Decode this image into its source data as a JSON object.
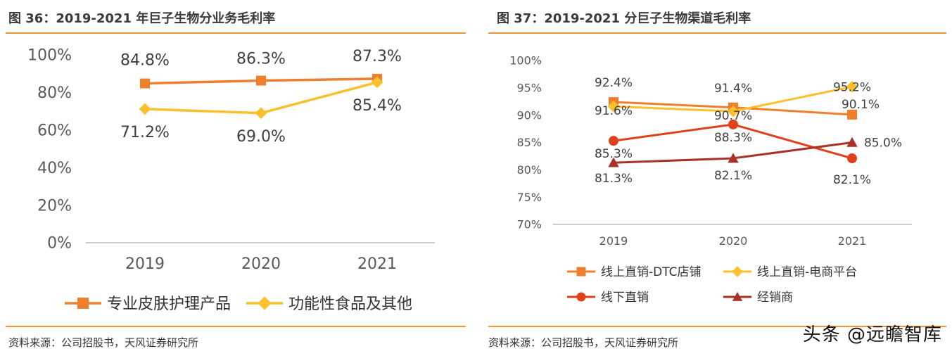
{
  "watermark": "头条 @远瞻智库",
  "chart_data": [
    {
      "type": "line",
      "title": "图 36：2019-2021 年巨子生物分业务毛利率",
      "source": "资料来源：公司招股书，天风证券研究所",
      "categories": [
        "2019",
        "2020",
        "2021"
      ],
      "ylim": [
        0,
        100
      ],
      "yticks": [
        "0%",
        "20%",
        "40%",
        "60%",
        "80%",
        "100%"
      ],
      "series": [
        {
          "name": "专业皮肤护理产品",
          "values": [
            84.8,
            86.3,
            87.3
          ],
          "labels": [
            "84.8%",
            "86.3%",
            "87.3%"
          ],
          "color": "#f07f2d",
          "marker": "square"
        },
        {
          "name": "功能性食品及其他",
          "values": [
            71.2,
            69.0,
            85.4
          ],
          "labels": [
            "71.2%",
            "69.0%",
            "85.4%"
          ],
          "color": "#fbc02d",
          "marker": "diamond"
        }
      ],
      "legend": "bottom"
    },
    {
      "type": "line",
      "title": "图 37：2019-2021 分巨子生物渠道毛利率",
      "source": "资料来源：公司招股书，天风证券研究所",
      "categories": [
        "2019",
        "2020",
        "2021"
      ],
      "ylim": [
        70,
        100
      ],
      "yticks": [
        "70%",
        "75%",
        "80%",
        "85%",
        "90%",
        "95%",
        "100%"
      ],
      "series": [
        {
          "name": "线上直销-DTC店铺",
          "values": [
            92.4,
            91.4,
            90.1
          ],
          "labels": [
            "92.4%",
            "91.4%",
            "90.1%"
          ],
          "color": "#f07f2d",
          "marker": "square"
        },
        {
          "name": "线上直销-电商平台",
          "values": [
            91.6,
            90.7,
            95.2
          ],
          "labels": [
            "91.6%",
            "90.7%",
            "95.2%"
          ],
          "color": "#fbc02d",
          "marker": "diamond"
        },
        {
          "name": "线下直销",
          "values": [
            85.3,
            88.3,
            82.1
          ],
          "labels": [
            "85.3%",
            "88.3%",
            "82.1%"
          ],
          "color": "#e0401a",
          "marker": "circle"
        },
        {
          "name": "经销商",
          "values": [
            81.3,
            82.1,
            85.0
          ],
          "labels": [
            "81.3%",
            "82.1%",
            "85.0%"
          ],
          "color": "#a93226",
          "marker": "triangle"
        }
      ],
      "legend": "bottom"
    }
  ]
}
